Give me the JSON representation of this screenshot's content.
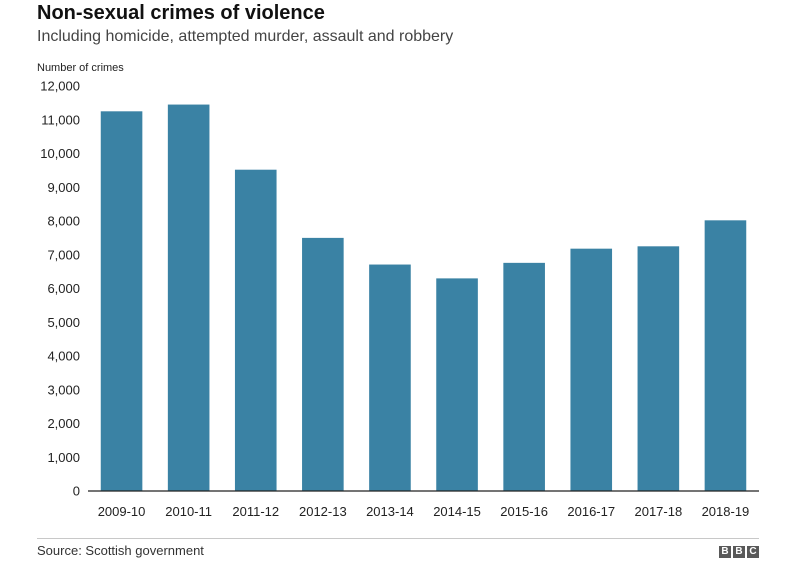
{
  "title": "Non-sexual crimes of violence",
  "subtitle": "Including homicide, attempted murder, assault and robbery",
  "source": "Source: Scottish government",
  "logo_text": "BBC",
  "colors": {
    "bar": "#3a82a4",
    "axis": "#222222",
    "grid": "#cccccc"
  },
  "chart_data": {
    "type": "bar",
    "title": "Non-sexual crimes of violence",
    "subtitle": "Including homicide, attempted murder, assault and robbery",
    "ylabel": "Number of crimes",
    "xlabel": "",
    "ylim": [
      0,
      12000
    ],
    "yticks": [
      0,
      1000,
      2000,
      3000,
      4000,
      5000,
      6000,
      7000,
      8000,
      9000,
      10000,
      11000,
      12000
    ],
    "ytick_labels": [
      "0",
      "1,000",
      "2,000",
      "3,000",
      "4,000",
      "5,000",
      "6,000",
      "7,000",
      "8,000",
      "9,000",
      "10,000",
      "11,000",
      "12,000"
    ],
    "grid": false,
    "categories": [
      "2009-10",
      "2010-11",
      "2011-12",
      "2012-13",
      "2013-14",
      "2014-15",
      "2015-16",
      "2016-17",
      "2017-18",
      "2018-19"
    ],
    "values": [
      11250,
      11450,
      9520,
      7500,
      6710,
      6300,
      6760,
      7180,
      7250,
      8020
    ]
  }
}
